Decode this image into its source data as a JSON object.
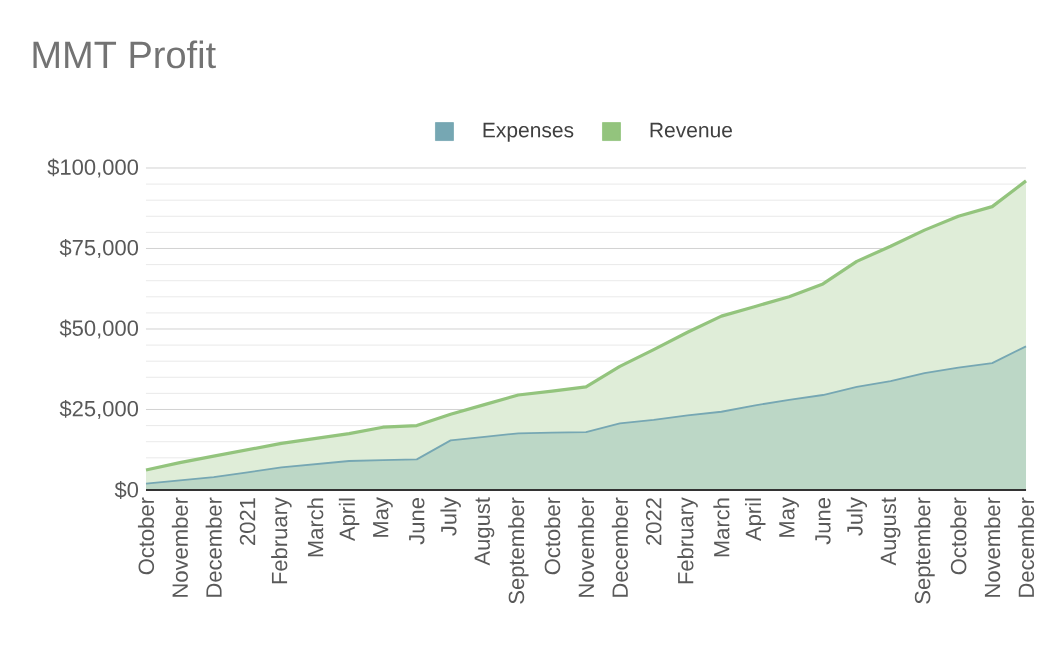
{
  "chart_data": {
    "type": "area",
    "title": "MMT Profit",
    "categories": [
      "October",
      "November",
      "December",
      "2021",
      "February",
      "March",
      "April",
      "May",
      "June",
      "July",
      "August",
      "September",
      "October",
      "November",
      "December",
      "2022",
      "February",
      "March",
      "April",
      "May",
      "June",
      "July",
      "August",
      "September",
      "October",
      "November",
      "December"
    ],
    "series": [
      {
        "name": "Expenses",
        "color": "#76a7b3",
        "values": [
          2000,
          3000,
          4000,
          5500,
          7000,
          8000,
          9000,
          9300,
          9500,
          15400,
          16500,
          17600,
          17800,
          18000,
          20700,
          21800,
          23200,
          24300,
          26300,
          28000,
          29500,
          32000,
          33800,
          36300,
          38000,
          39400,
          44600
        ]
      },
      {
        "name": "Revenue",
        "color": "#93c47d",
        "values": [
          6200,
          8500,
          10500,
          12500,
          14500,
          16000,
          17500,
          19500,
          20000,
          23500,
          26500,
          29500,
          30700,
          32000,
          38400,
          43600,
          49000,
          54000,
          57000,
          60000,
          64000,
          71000,
          75700,
          80700,
          85000,
          88000,
          96000
        ]
      }
    ],
    "ylim": [
      0,
      100000
    ],
    "yticks": [
      {
        "value": 0,
        "label": "$0"
      },
      {
        "value": 25000,
        "label": "$25,000"
      },
      {
        "value": 50000,
        "label": "$50,000"
      },
      {
        "value": 75000,
        "label": "$75,000"
      },
      {
        "value": 100000,
        "label": "$100,000"
      }
    ],
    "grid": "y",
    "legend": "top"
  }
}
